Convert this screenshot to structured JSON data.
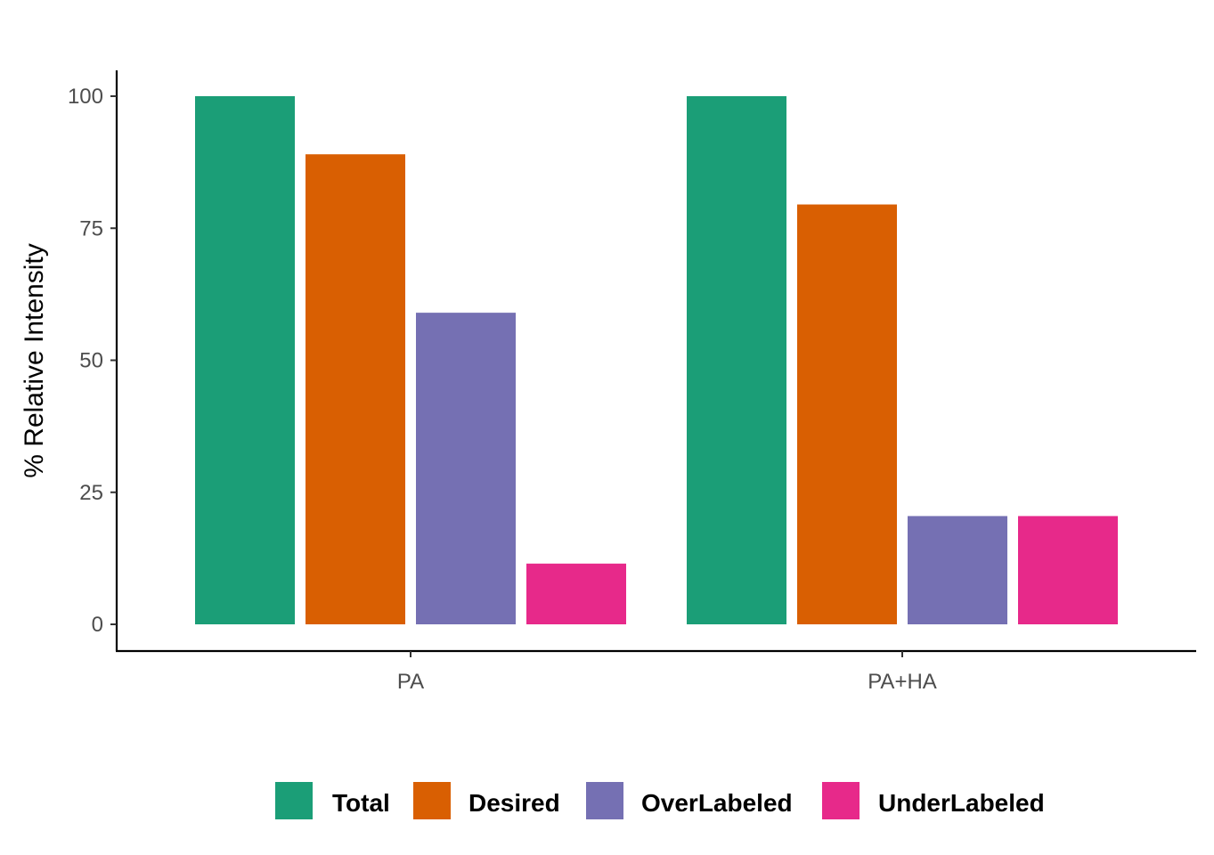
{
  "chart_data": {
    "type": "bar",
    "title": "",
    "xlabel": "",
    "ylabel": "% Relative Intensity",
    "ylim": [
      -5,
      105
    ],
    "yticks": [
      0,
      25,
      50,
      75,
      100
    ],
    "ytick_labels": [
      "0",
      "25",
      "50",
      "75",
      "100"
    ],
    "categories": [
      "PA",
      "PA+HA"
    ],
    "series": [
      {
        "name": "Total",
        "color": "#1b9e77",
        "values": [
          100,
          100
        ]
      },
      {
        "name": "Desired",
        "color": "#d95f02",
        "values": [
          89,
          79.5
        ]
      },
      {
        "name": "OverLabeled",
        "color": "#7570b3",
        "values": [
          59,
          20.5
        ]
      },
      {
        "name": "UnderLabeled",
        "color": "#e7298a",
        "values": [
          11.5,
          20.5
        ]
      }
    ],
    "legend_position": "bottom",
    "grid": false
  }
}
